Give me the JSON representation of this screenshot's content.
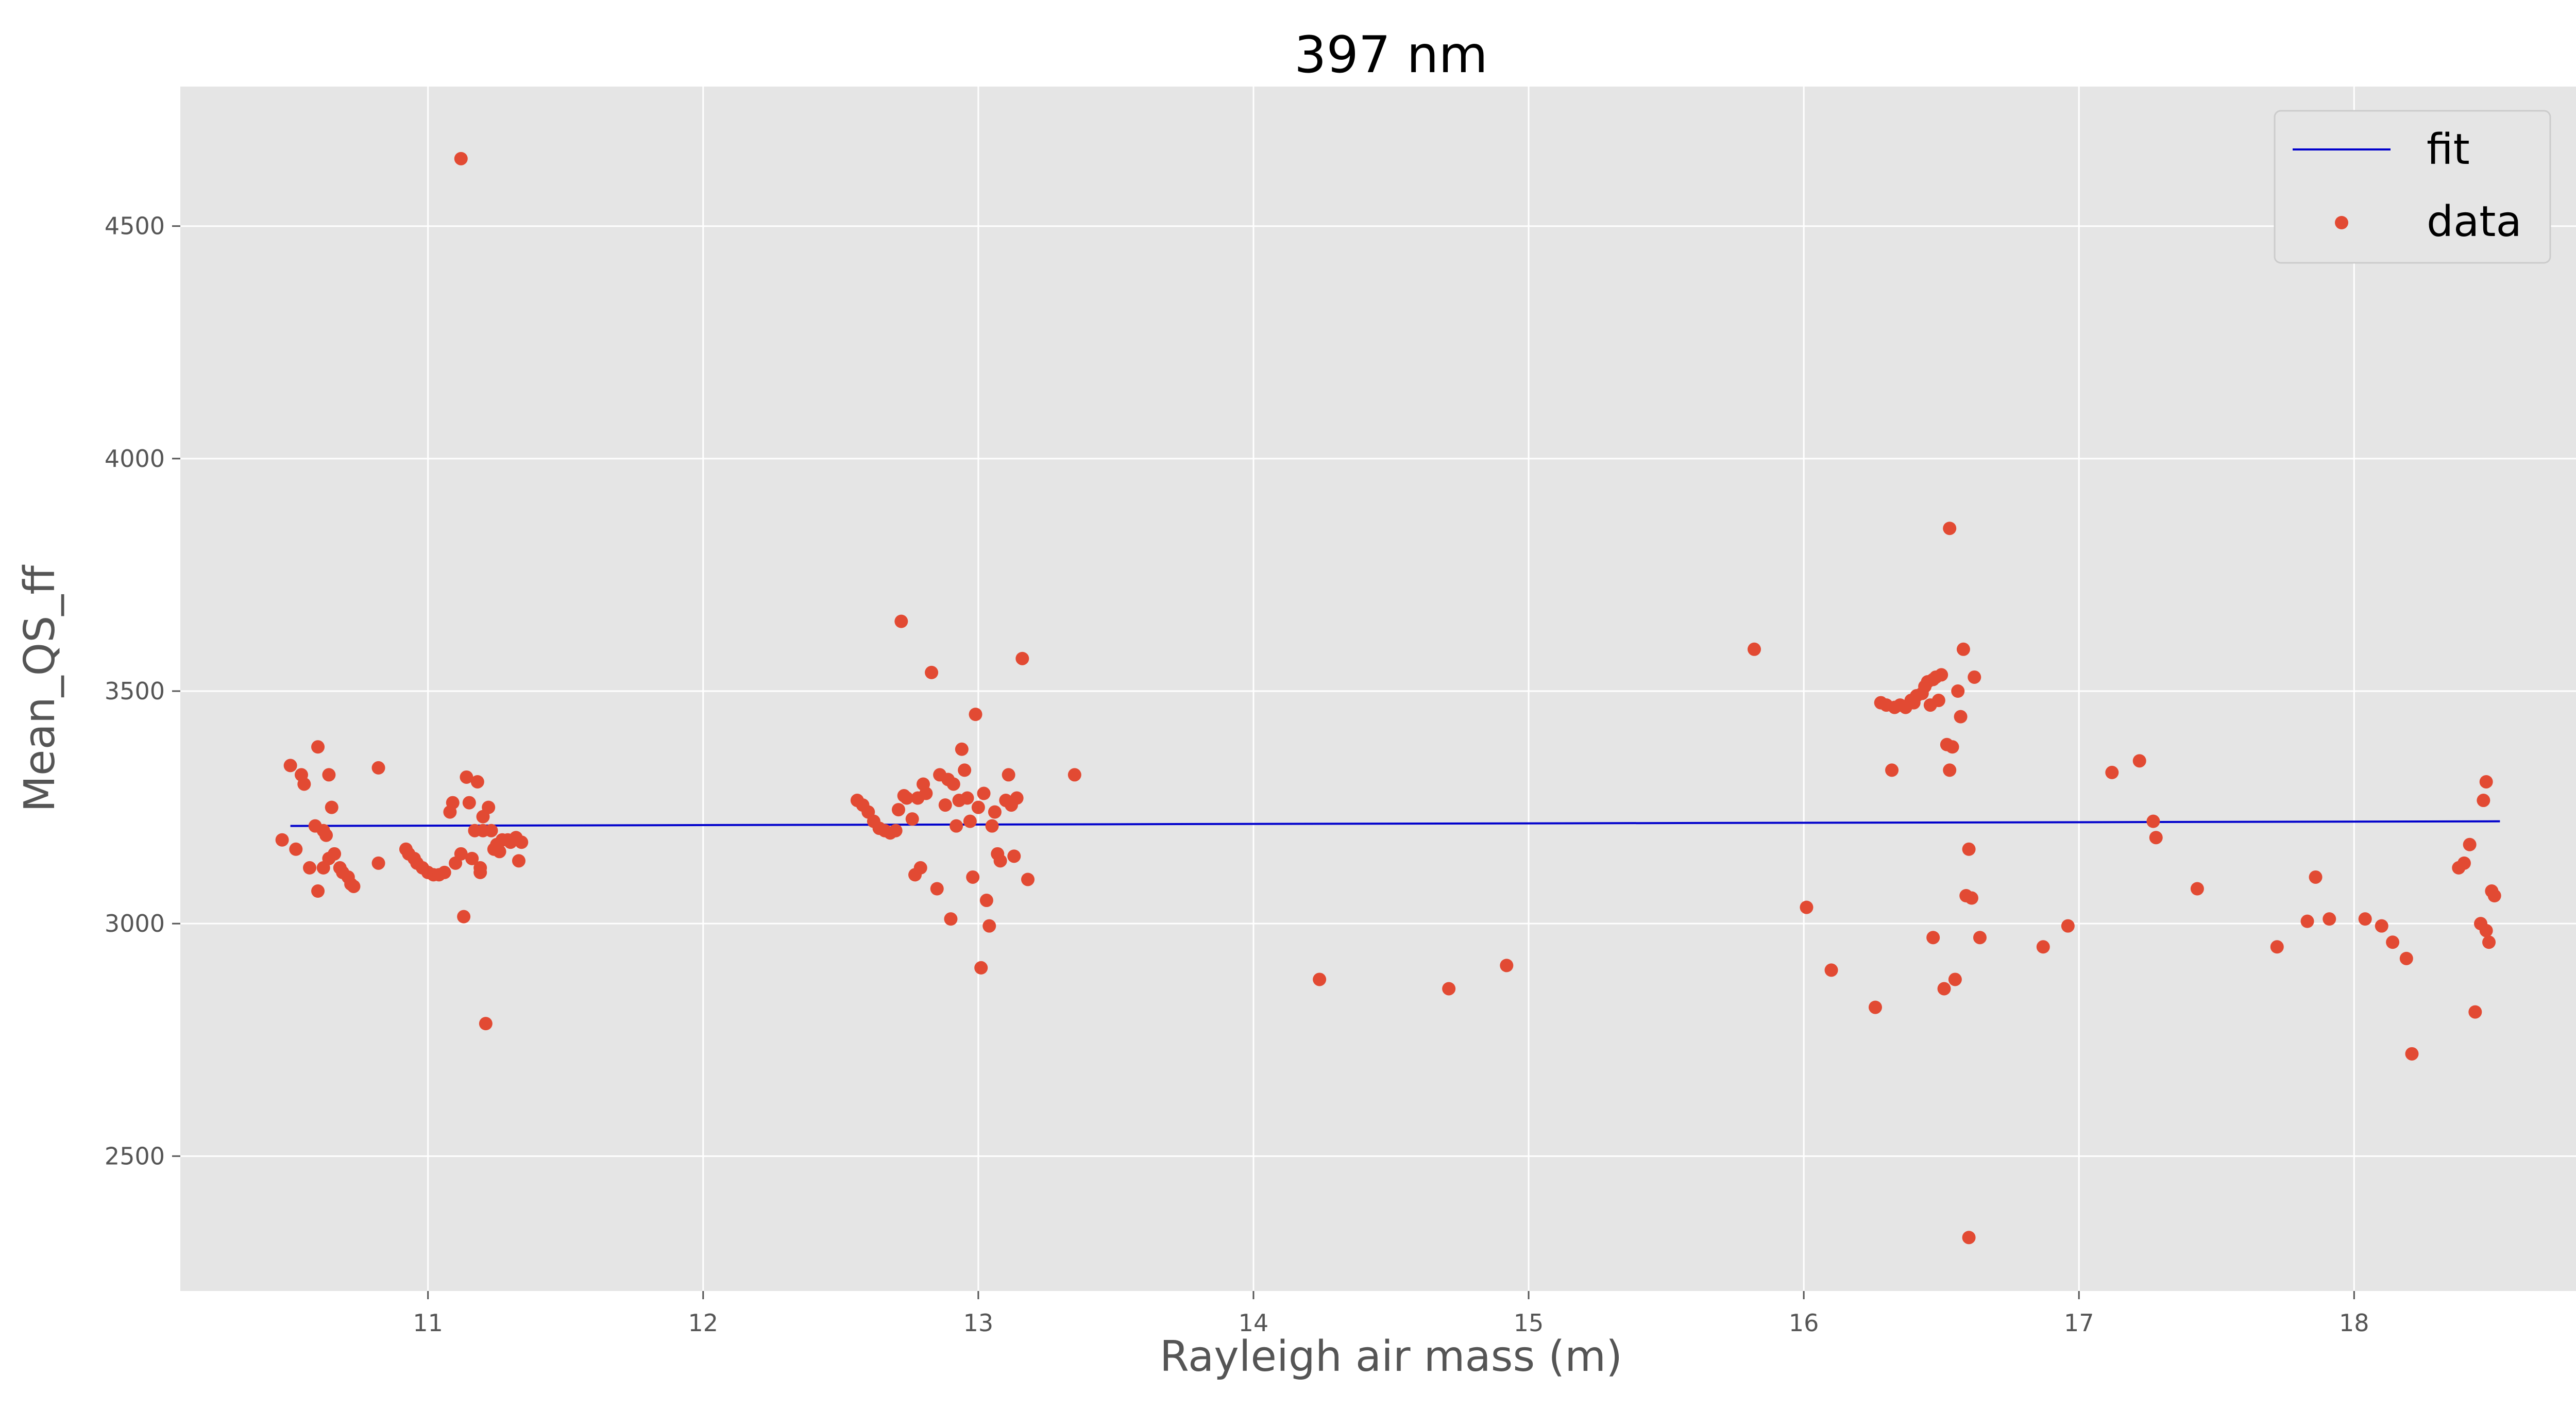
{
  "chart_data": {
    "type": "scatter",
    "title": "397 nm",
    "xlabel": "Rayleigh air mass (m)",
    "ylabel": "Mean_QS_ff",
    "xlim": [
      10.1,
      18.9
    ],
    "ylim": [
      2210,
      4800
    ],
    "xticks": [
      11,
      12,
      13,
      14,
      15,
      16,
      17,
      18
    ],
    "yticks": [
      2500,
      3000,
      3500,
      4000,
      4500
    ],
    "grid": true,
    "legend_position": "top-right",
    "colors": {
      "background": "#e5e5e5",
      "grid": "#ffffff",
      "fit": "#0000cc",
      "data": "#e24a33"
    },
    "series": [
      {
        "name": "fit",
        "kind": "line",
        "x": [
          10.5,
          18.53
        ],
        "y": [
          3210,
          3220
        ]
      },
      {
        "name": "data",
        "kind": "scatter",
        "x": [
          10.47,
          10.5,
          10.52,
          10.54,
          10.55,
          10.57,
          10.59,
          10.6,
          10.6,
          10.62,
          10.62,
          10.63,
          10.64,
          10.64,
          10.65,
          10.66,
          10.68,
          10.69,
          10.71,
          10.72,
          10.73,
          10.82,
          10.82,
          10.92,
          10.93,
          10.95,
          10.96,
          10.98,
          11.0,
          11.02,
          11.04,
          11.06,
          11.08,
          11.09,
          11.1,
          11.12,
          11.12,
          11.13,
          11.14,
          11.15,
          11.16,
          11.17,
          11.18,
          11.19,
          11.19,
          11.2,
          11.2,
          11.21,
          11.22,
          11.23,
          11.24,
          11.25,
          11.26,
          11.27,
          11.29,
          11.3,
          11.32,
          11.33,
          11.34,
          12.56,
          12.58,
          12.6,
          12.62,
          12.64,
          12.66,
          12.68,
          12.7,
          12.71,
          12.72,
          12.73,
          12.74,
          12.76,
          12.77,
          12.78,
          12.79,
          12.8,
          12.81,
          12.83,
          12.85,
          12.86,
          12.88,
          12.89,
          12.9,
          12.91,
          12.92,
          12.93,
          12.94,
          12.95,
          12.96,
          12.97,
          12.98,
          12.99,
          13.0,
          13.01,
          13.02,
          13.03,
          13.04,
          13.05,
          13.06,
          13.07,
          13.08,
          13.1,
          13.11,
          13.12,
          13.13,
          13.14,
          13.16,
          13.18,
          13.35,
          14.24,
          14.71,
          14.92,
          15.82,
          16.01,
          16.1,
          16.26,
          16.28,
          16.3,
          16.32,
          16.33,
          16.35,
          16.37,
          16.39,
          16.4,
          16.41,
          16.43,
          16.44,
          16.45,
          16.46,
          16.47,
          16.47,
          16.48,
          16.49,
          16.5,
          16.51,
          16.52,
          16.53,
          16.53,
          16.54,
          16.55,
          16.56,
          16.57,
          16.58,
          16.59,
          16.6,
          16.6,
          16.61,
          16.62,
          16.64,
          16.87,
          16.96,
          17.12,
          17.22,
          17.27,
          17.28,
          17.43,
          17.72,
          17.83,
          17.86,
          17.91,
          18.04,
          18.1,
          18.14,
          18.19,
          18.21,
          18.38,
          18.4,
          18.42,
          18.44,
          18.46,
          18.47,
          18.48,
          18.48,
          18.49,
          18.5,
          18.51
        ],
        "y": [
          3180,
          3340,
          3160,
          3320,
          3300,
          3120,
          3210,
          3380,
          3070,
          3200,
          3120,
          3190,
          3320,
          3140,
          3250,
          3150,
          3120,
          3110,
          3100,
          3085,
          3080,
          3335,
          3130,
          3160,
          3150,
          3140,
          3130,
          3120,
          3110,
          3105,
          3105,
          3110,
          3240,
          3260,
          3130,
          4645,
          3150,
          3015,
          3315,
          3260,
          3140,
          3200,
          3305,
          3120,
          3110,
          3230,
          3200,
          2785,
          3250,
          3200,
          3160,
          3170,
          3155,
          3180,
          3180,
          3175,
          3185,
          3135,
          3175,
          3265,
          3255,
          3240,
          3220,
          3205,
          3200,
          3195,
          3200,
          3245,
          3650,
          3275,
          3270,
          3225,
          3105,
          3270,
          3120,
          3300,
          3280,
          3540,
          3075,
          3320,
          3255,
          3310,
          3010,
          3300,
          3210,
          3265,
          3375,
          3330,
          3270,
          3220,
          3100,
          3450,
          3250,
          2905,
          3280,
          3050,
          2995,
          3210,
          3240,
          3150,
          3135,
          3265,
          3320,
          3255,
          3145,
          3270,
          3570,
          3095,
          3320,
          2880,
          2860,
          2910,
          3590,
          3035,
          2900,
          2820,
          3475,
          3470,
          3330,
          3465,
          3470,
          3465,
          3480,
          3475,
          3490,
          3495,
          3510,
          3520,
          3470,
          3525,
          2970,
          3530,
          3480,
          3535,
          2860,
          3385,
          3850,
          3330,
          3380,
          2880,
          3500,
          3445,
          3590,
          3060,
          3160,
          2325,
          3055,
          3530,
          2970,
          2950,
          2995,
          3325,
          3350,
          3220,
          3185,
          3075,
          2950,
          3005,
          3100,
          3010,
          3010,
          2995,
          2960,
          2925,
          2720,
          3120,
          3130,
          3170,
          2810,
          3000,
          3265,
          3305,
          2985,
          2960,
          3070,
          3060
        ]
      }
    ]
  }
}
